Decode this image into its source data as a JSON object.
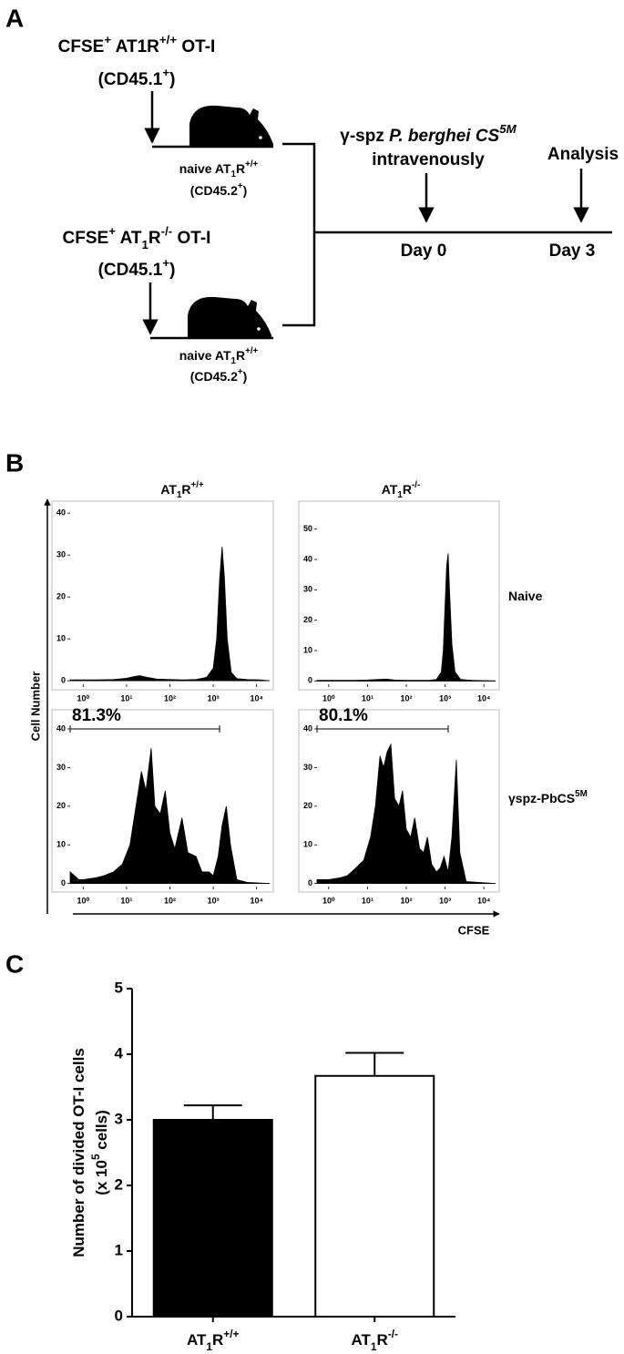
{
  "panel_a": {
    "label": "A",
    "texts": [
      [
        {
          "t": "CFSE"
        },
        {
          "sup": "+"
        },
        {
          "t": " AT1R"
        },
        {
          "sup": "+/+"
        },
        {
          "t": " OT-I"
        }
      ],
      [
        {
          "t": "(CD45.1"
        },
        {
          "sup": "+"
        },
        {
          "t": ")"
        }
      ],
      [
        {
          "t": "naive AT"
        },
        {
          "sub": "1"
        },
        {
          "t": "R"
        },
        {
          "sup": "+/+"
        }
      ],
      [
        {
          "t": "(CD45.2"
        },
        {
          "sup": "+"
        },
        {
          "t": ")"
        }
      ],
      [
        {
          "t": "CFSE"
        },
        {
          "sup": "+"
        },
        {
          "t": " AT"
        },
        {
          "sub": "1"
        },
        {
          "t": "R"
        },
        {
          "sup": "-/-"
        },
        {
          "t": " OT-I"
        }
      ],
      [
        {
          "t": "(CD45.1"
        },
        {
          "sup": "+"
        },
        {
          "t": ")"
        }
      ],
      [
        {
          "t": "naive AT"
        },
        {
          "sub": "1"
        },
        {
          "t": "R"
        },
        {
          "sup": "+/+"
        }
      ],
      [
        {
          "t": "(CD45.2"
        },
        {
          "sup": "+"
        },
        {
          "t": ")"
        }
      ],
      [
        {
          "t": "γ-spz "
        },
        {
          "i": "P. berghei CS"
        },
        {
          "isup": "5M"
        }
      ],
      [
        {
          "t": "intravenously"
        }
      ],
      [
        {
          "t": "Analysis"
        }
      ],
      [
        {
          "t": "Day 0"
        }
      ],
      [
        {
          "t": "Day 3"
        }
      ]
    ]
  },
  "panel_b": {
    "label": "B",
    "column_titles": [
      [
        {
          "t": "AT"
        },
        {
          "sub": "1"
        },
        {
          "t": "R"
        },
        {
          "sup": "+/+"
        }
      ],
      [
        {
          "t": "AT"
        },
        {
          "sub": "1"
        },
        {
          "t": "R"
        },
        {
          "sup": "-/-"
        }
      ]
    ],
    "row_titles": [
      [
        {
          "t": "Naive"
        }
      ],
      [
        {
          "t": "γspz-PbCS"
        },
        {
          "sup": "5M"
        }
      ]
    ],
    "y_label": "Cell Number",
    "x_label": "CFSE"
  },
  "panel_c": {
    "label": "C"
  },
  "chart_data": [
    {
      "type": "area",
      "color": "#000000",
      "log_x": true,
      "xlim": [
        0.5,
        20000
      ],
      "ylim": [
        -1.5,
        42
      ],
      "xticks": [
        {
          "value": 1,
          "label": "10⁰"
        },
        {
          "value": 10,
          "label": "10¹"
        },
        {
          "value": 100,
          "label": "10²"
        },
        {
          "value": 1000,
          "label": "10³"
        },
        {
          "value": 10000,
          "label": "10⁴"
        }
      ],
      "yticks": [
        0,
        10,
        20,
        30,
        40
      ],
      "x": [
        0.5,
        1,
        2,
        5,
        10,
        15,
        20,
        30,
        50,
        100,
        200,
        400,
        700,
        1000,
        1200,
        1400,
        1600,
        1800,
        2100,
        2600,
        3500,
        6000,
        12000,
        20000
      ],
      "values": [
        0.2,
        0.2,
        0.2,
        0.3,
        0.6,
        1,
        1.2,
        0.8,
        0.4,
        0.3,
        0.2,
        0.3,
        0.8,
        3,
        10,
        24,
        32,
        25,
        10,
        2,
        0.5,
        0.3,
        0.2,
        0
      ]
    },
    {
      "type": "area",
      "color": "#000000",
      "log_x": true,
      "xlim": [
        0.5,
        20000
      ],
      "ylim": [
        -2,
        58
      ],
      "xticks": [
        {
          "value": 1,
          "label": "10⁰"
        },
        {
          "value": 10,
          "label": "10¹"
        },
        {
          "value": 100,
          "label": "10²"
        },
        {
          "value": 1000,
          "label": "10³"
        },
        {
          "value": 10000,
          "label": "10⁴"
        }
      ],
      "yticks": [
        0,
        10,
        20,
        30,
        40,
        50
      ],
      "x": [
        0.5,
        1,
        2,
        5,
        10,
        20,
        30,
        50,
        100,
        200,
        400,
        600,
        800,
        900,
        1000,
        1100,
        1200,
        1300,
        1500,
        1800,
        2500,
        5000,
        20000
      ],
      "values": [
        0.2,
        0.2,
        0.2,
        0.2,
        0.3,
        0.5,
        0.6,
        0.3,
        0.2,
        0.2,
        0.2,
        0.5,
        3,
        10,
        25,
        38,
        42,
        30,
        12,
        3,
        0.5,
        0.2,
        0
      ]
    },
    {
      "type": "area",
      "color": "#000000",
      "log_x": true,
      "xlim": [
        0.5,
        20000
      ],
      "ylim": [
        -1.5,
        44
      ],
      "xticks": [
        {
          "value": 1,
          "label": "10⁰"
        },
        {
          "value": 10,
          "label": "10¹"
        },
        {
          "value": 100,
          "label": "10²"
        },
        {
          "value": 1000,
          "label": "10³"
        },
        {
          "value": 10000,
          "label": "10⁴"
        }
      ],
      "yticks": [
        0,
        10,
        20,
        30,
        40
      ],
      "x": [
        0.5,
        0.8,
        1,
        2,
        3,
        5,
        8,
        12,
        16,
        22,
        28,
        37,
        45,
        60,
        78,
        100,
        130,
        190,
        260,
        400,
        550,
        800,
        1000,
        1300,
        1600,
        2000,
        2500,
        3500,
        6000,
        20000
      ],
      "values": [
        3,
        1,
        1,
        1.5,
        2,
        3,
        5,
        10,
        19,
        29,
        24,
        35,
        20,
        18,
        24,
        13,
        9,
        17,
        8,
        7,
        3,
        3,
        2,
        7,
        15,
        20,
        10,
        1,
        0.3,
        0
      ],
      "gate": {
        "label": "81.3%",
        "x": [
          0.5,
          1400
        ],
        "y": 40
      }
    },
    {
      "type": "area",
      "color": "#000000",
      "log_x": true,
      "xlim": [
        0.5,
        20000
      ],
      "ylim": [
        -1.5,
        44
      ],
      "xticks": [
        {
          "value": 1,
          "label": "10⁰"
        },
        {
          "value": 10,
          "label": "10¹"
        },
        {
          "value": 100,
          "label": "10²"
        },
        {
          "value": 1000,
          "label": "10³"
        },
        {
          "value": 10000,
          "label": "10⁴"
        }
      ],
      "yticks": [
        0,
        10,
        20,
        30,
        40
      ],
      "x": [
        0.5,
        1,
        2,
        3,
        5,
        8,
        12,
        16,
        21,
        26,
        32,
        40,
        50,
        65,
        80,
        100,
        130,
        165,
        220,
        280,
        350,
        450,
        600,
        750,
        940,
        1200,
        1500,
        1950,
        2400,
        3500,
        20000
      ],
      "values": [
        1,
        1,
        1.5,
        2,
        4,
        6,
        12,
        20,
        33,
        30,
        34,
        36,
        22,
        20,
        24,
        14,
        12,
        17,
        9,
        8,
        12,
        5,
        3,
        4,
        7,
        3,
        12,
        32,
        8,
        0.5,
        0
      ],
      "gate": {
        "label": "80.1%",
        "x": [
          0.5,
          1200
        ],
        "y": 40
      }
    },
    {
      "type": "bar",
      "categories": [
        [
          {
            "t": "AT"
          },
          {
            "sub": "1"
          },
          {
            "t": "R"
          },
          {
            "sup": "+/+"
          }
        ],
        [
          {
            "t": "AT"
          },
          {
            "sub": "1"
          },
          {
            "t": "R"
          },
          {
            "sup": "-/-"
          }
        ]
      ],
      "values": [
        3.0,
        3.67
      ],
      "errors": [
        0.22,
        0.35
      ],
      "colors": [
        "#000000",
        "#ffffff"
      ],
      "ylim": [
        0,
        5
      ],
      "yticks": [
        0,
        1,
        2,
        3,
        4,
        5
      ],
      "ylabel": [
        [
          {
            "t": "Number of divided OT-I cells"
          }
        ],
        [
          {
            "t": "(x 10"
          },
          {
            "sup": "5"
          },
          {
            "t": " cells)"
          }
        ]
      ]
    }
  ]
}
